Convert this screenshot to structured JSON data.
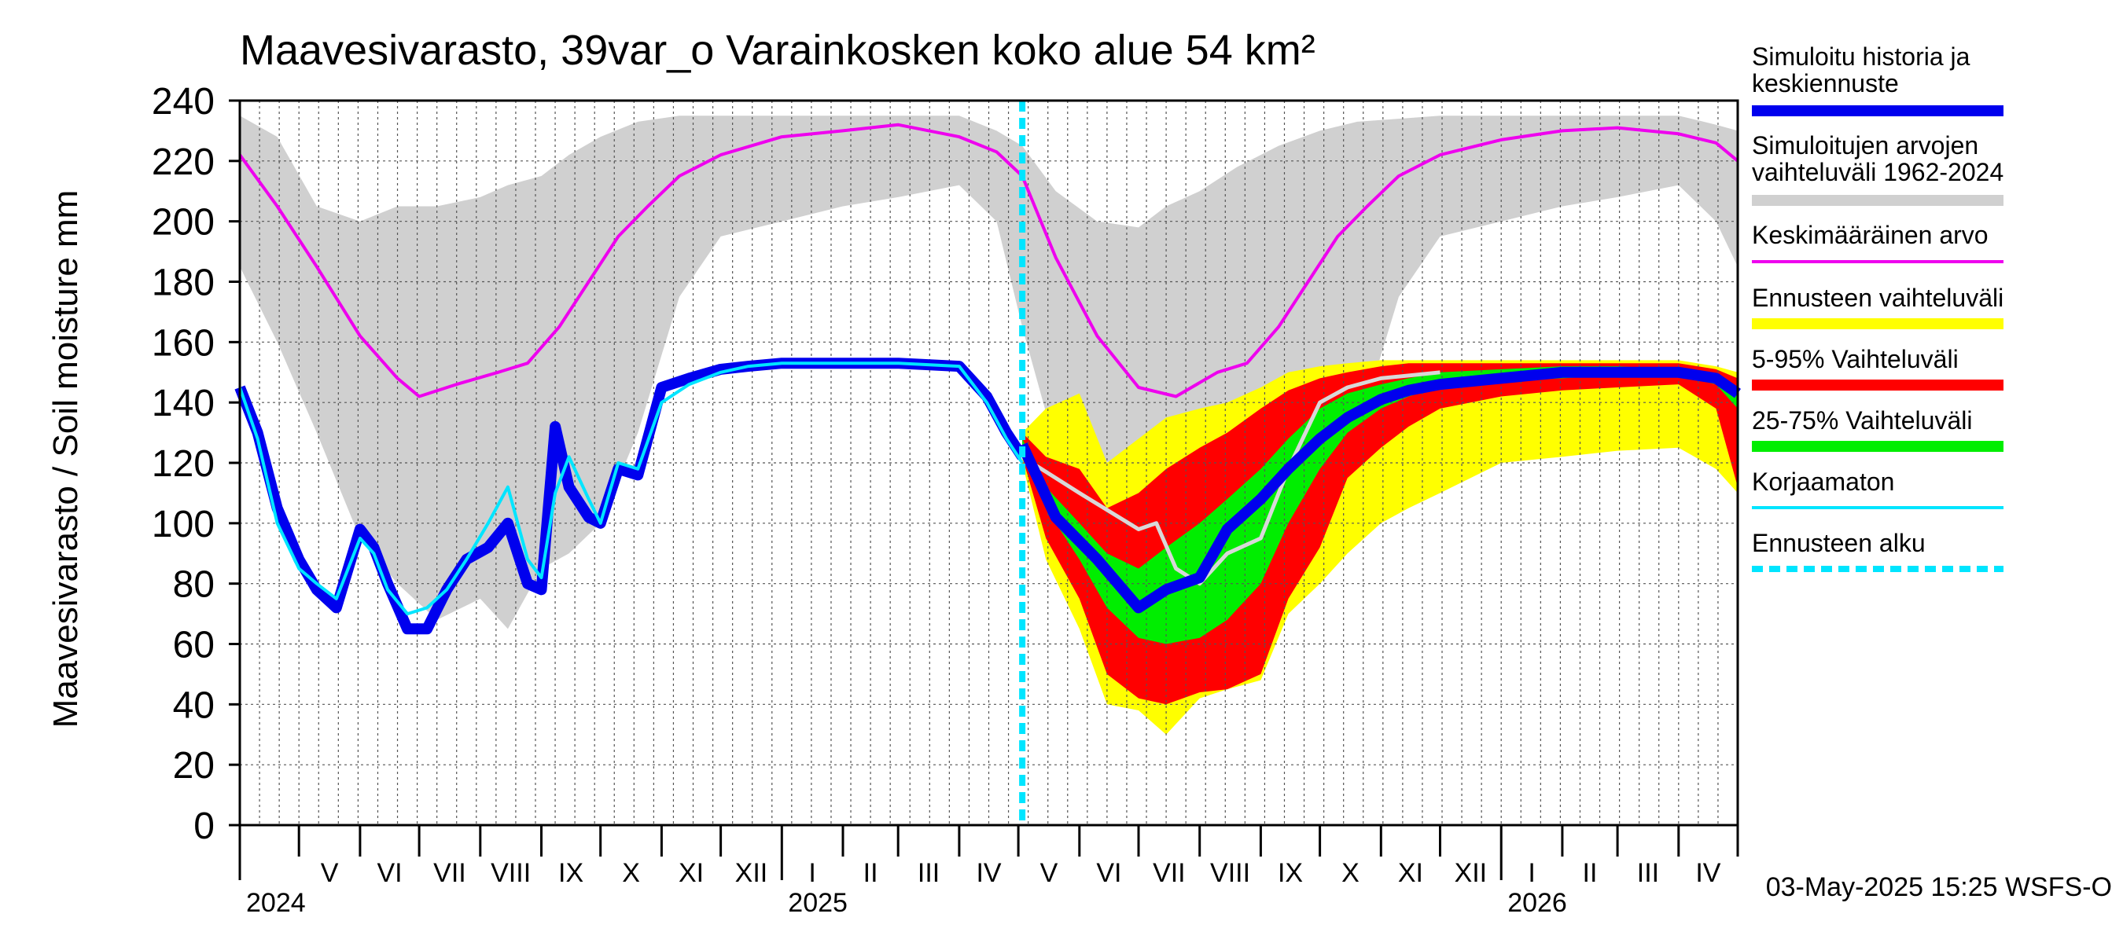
{
  "chart_data": {
    "type": "area",
    "title": "Maavesivarasto, 39var_o Varainkosken koko alue 54 km²",
    "ylabel": "Maavesivarasto / Soil moisture   mm",
    "ylim": [
      0,
      240
    ],
    "xlim": [
      "2024-04-01",
      "2026-05-01"
    ],
    "grid": true,
    "y_ticks": [
      0,
      20,
      40,
      60,
      80,
      100,
      120,
      140,
      160,
      180,
      200,
      220,
      240
    ],
    "month_labels": [
      {
        "label": "V",
        "date": "2024-05-01"
      },
      {
        "label": "VI",
        "date": "2024-06-01"
      },
      {
        "label": "VII",
        "date": "2024-07-01"
      },
      {
        "label": "VIII",
        "date": "2024-08-01"
      },
      {
        "label": "IX",
        "date": "2024-09-01"
      },
      {
        "label": "X",
        "date": "2024-10-01"
      },
      {
        "label": "XI",
        "date": "2024-11-01"
      },
      {
        "label": "XII",
        "date": "2024-12-01"
      },
      {
        "label": "I",
        "date": "2025-01-01"
      },
      {
        "label": "II",
        "date": "2025-02-01"
      },
      {
        "label": "III",
        "date": "2025-03-01"
      },
      {
        "label": "IV",
        "date": "2025-04-01"
      },
      {
        "label": "V",
        "date": "2025-05-01"
      },
      {
        "label": "VI",
        "date": "2025-06-01"
      },
      {
        "label": "VII",
        "date": "2025-07-01"
      },
      {
        "label": "VIII",
        "date": "2025-08-01"
      },
      {
        "label": "IX",
        "date": "2025-09-01"
      },
      {
        "label": "X",
        "date": "2025-10-01"
      },
      {
        "label": "XI",
        "date": "2025-11-01"
      },
      {
        "label": "XII",
        "date": "2025-12-01"
      },
      {
        "label": "I",
        "date": "2026-01-01"
      },
      {
        "label": "II",
        "date": "2026-02-01"
      },
      {
        "label": "III",
        "date": "2026-03-01"
      },
      {
        "label": "IV",
        "date": "2026-04-01"
      }
    ],
    "year_labels": [
      {
        "label": "2024",
        "date": "2024-04-01"
      },
      {
        "label": "2025",
        "date": "2025-01-01"
      },
      {
        "label": "2026",
        "date": "2026-01-01"
      }
    ],
    "forecast_start": "2025-05-03",
    "timestamp": "03-May-2025 15:25 WSFS-O",
    "legend": {
      "placement": "right",
      "items": [
        {
          "label": "Simuloitu historia ja keskiennuste",
          "color": "#0000ee",
          "style": "thick-line"
        },
        {
          "label": "Simuloitujen arvojen vaihteluväli 1962-2024",
          "color": "#d0d0d0",
          "style": "thick-line"
        },
        {
          "label": "Keskimääräinen arvo",
          "color": "#ee00ee",
          "style": "line"
        },
        {
          "label": "Ennusteen vaihteluväli",
          "color": "#ffff00",
          "style": "thick-line"
        },
        {
          "label": "5-95% Vaihteluväli",
          "color": "#ff0000",
          "style": "thick-line"
        },
        {
          "label": "25-75% Vaihteluväli",
          "color": "#00ee00",
          "style": "thick-line"
        },
        {
          "label": "Korjaamaton",
          "color": "#00e5ff",
          "style": "line"
        },
        {
          "label": "Ennusteen alku",
          "color": "#00e5ff",
          "style": "dashed"
        }
      ]
    },
    "series": [
      {
        "key": "hist_range",
        "type": "band",
        "color": "#d0d0d0",
        "x": [
          "2024-04-01",
          "2024-04-20",
          "2024-05-10",
          "2024-06-01",
          "2024-06-20",
          "2024-07-10",
          "2024-08-01",
          "2024-08-15",
          "2024-09-01",
          "2024-09-15",
          "2024-10-01",
          "2024-10-20",
          "2024-11-10",
          "2024-12-01",
          "2025-01-01",
          "2025-02-01",
          "2025-03-01",
          "2025-04-01",
          "2025-04-20",
          "2025-05-03",
          "2025-05-20",
          "2025-06-10",
          "2025-07-01",
          "2025-07-15",
          "2025-08-01",
          "2025-08-20",
          "2025-09-10",
          "2025-10-01",
          "2025-10-20",
          "2025-11-10",
          "2025-12-01",
          "2026-01-01",
          "2026-02-01",
          "2026-03-01",
          "2026-04-01",
          "2026-04-20",
          "2026-05-01"
        ],
        "upper": [
          235,
          228,
          205,
          200,
          205,
          205,
          208,
          212,
          215,
          222,
          228,
          233,
          235,
          235,
          235,
          235,
          235,
          235,
          230,
          225,
          210,
          200,
          198,
          205,
          210,
          218,
          225,
          230,
          233,
          234,
          235,
          235,
          235,
          235,
          235,
          232,
          230
        ],
        "lower": [
          185,
          160,
          130,
          95,
          80,
          68,
          75,
          65,
          85,
          90,
          100,
          130,
          175,
          195,
          200,
          205,
          208,
          212,
          200,
          165,
          125,
          110,
          105,
          95,
          90,
          95,
          100,
          105,
          130,
          175,
          195,
          200,
          205,
          208,
          212,
          200,
          185
        ]
      },
      {
        "key": "mean",
        "type": "line",
        "color": "#ee00ee",
        "x": [
          "2024-04-01",
          "2024-04-20",
          "2024-05-10",
          "2024-06-01",
          "2024-06-20",
          "2024-07-01",
          "2024-07-20",
          "2024-08-10",
          "2024-08-25",
          "2024-09-10",
          "2024-09-25",
          "2024-10-10",
          "2024-10-25",
          "2024-11-10",
          "2024-12-01",
          "2025-01-01",
          "2025-02-01",
          "2025-03-01",
          "2025-04-01",
          "2025-04-20",
          "2025-05-03",
          "2025-05-20",
          "2025-06-10",
          "2025-07-01",
          "2025-07-20",
          "2025-08-10",
          "2025-08-25",
          "2025-09-10",
          "2025-09-25",
          "2025-10-10",
          "2025-10-25",
          "2025-11-10",
          "2025-12-01",
          "2026-01-01",
          "2026-02-01",
          "2026-03-01",
          "2026-04-01",
          "2026-04-20",
          "2026-05-01"
        ],
        "values": [
          222,
          205,
          185,
          162,
          148,
          142,
          146,
          150,
          153,
          165,
          180,
          195,
          205,
          215,
          222,
          228,
          230,
          232,
          228,
          223,
          215,
          188,
          162,
          145,
          142,
          150,
          153,
          165,
          180,
          195,
          205,
          215,
          222,
          227,
          230,
          231,
          229,
          226,
          220
        ]
      },
      {
        "key": "fc_full",
        "type": "band",
        "color": "#ffff00",
        "x": [
          "2025-05-03",
          "2025-05-15",
          "2025-06-01",
          "2025-06-15",
          "2025-07-01",
          "2025-07-15",
          "2025-08-01",
          "2025-08-15",
          "2025-09-01",
          "2025-09-15",
          "2025-10-01",
          "2025-10-15",
          "2025-11-01",
          "2025-11-15",
          "2025-12-01",
          "2026-01-01",
          "2026-02-01",
          "2026-03-01",
          "2026-04-01",
          "2026-04-20",
          "2026-05-01"
        ],
        "upper": [
          130,
          138,
          143,
          120,
          128,
          135,
          138,
          140,
          145,
          150,
          152,
          153,
          154,
          154,
          154,
          154,
          154,
          154,
          154,
          152,
          150
        ],
        "lower": [
          120,
          88,
          65,
          40,
          38,
          30,
          42,
          45,
          48,
          70,
          80,
          90,
          100,
          105,
          110,
          120,
          122,
          124,
          125,
          118,
          110
        ]
      },
      {
        "key": "fc_5_95",
        "type": "band",
        "color": "#ff0000",
        "x": [
          "2025-05-03",
          "2025-05-15",
          "2025-06-01",
          "2025-06-15",
          "2025-07-01",
          "2025-07-15",
          "2025-08-01",
          "2025-08-15",
          "2025-09-01",
          "2025-09-15",
          "2025-10-01",
          "2025-10-15",
          "2025-11-01",
          "2025-11-15",
          "2025-12-01",
          "2026-01-01",
          "2026-02-01",
          "2026-03-01",
          "2026-04-01",
          "2026-04-20",
          "2026-05-01"
        ],
        "upper": [
          130,
          122,
          118,
          105,
          110,
          118,
          125,
          130,
          138,
          144,
          148,
          150,
          152,
          153,
          153,
          153,
          153,
          153,
          153,
          151,
          148
        ],
        "lower": [
          122,
          95,
          75,
          50,
          42,
          40,
          44,
          45,
          50,
          75,
          92,
          115,
          125,
          132,
          138,
          142,
          144,
          145,
          146,
          138,
          112
        ]
      },
      {
        "key": "fc_25_75",
        "type": "band",
        "color": "#00ee00",
        "x": [
          "2025-05-03",
          "2025-05-15",
          "2025-06-01",
          "2025-06-15",
          "2025-07-01",
          "2025-07-15",
          "2025-08-01",
          "2025-08-15",
          "2025-09-01",
          "2025-09-15",
          "2025-10-01",
          "2025-10-15",
          "2025-11-01",
          "2025-11-15",
          "2025-12-01",
          "2026-01-01",
          "2026-02-01",
          "2026-03-01",
          "2026-04-01",
          "2026-04-20",
          "2026-05-01"
        ],
        "upper": [
          128,
          112,
          100,
          90,
          85,
          92,
          100,
          108,
          118,
          128,
          138,
          143,
          146,
          148,
          150,
          151,
          152,
          152,
          151,
          149,
          145
        ],
        "lower": [
          124,
          105,
          88,
          72,
          62,
          60,
          62,
          68,
          80,
          100,
          118,
          130,
          138,
          142,
          145,
          147,
          148,
          149,
          149,
          146,
          138
        ]
      },
      {
        "key": "korjaamaton_hist",
        "type": "line",
        "color": "#00e5ff",
        "x": [
          "2024-04-01",
          "2024-04-10",
          "2024-04-20",
          "2024-05-01",
          "2024-05-10",
          "2024-05-20",
          "2024-06-01",
          "2024-06-08",
          "2024-06-15",
          "2024-06-25",
          "2024-07-05",
          "2024-07-15",
          "2024-07-25",
          "2024-08-05",
          "2024-08-15",
          "2024-08-25",
          "2024-09-01",
          "2024-09-08",
          "2024-09-15",
          "2024-09-25",
          "2024-10-01",
          "2024-10-10",
          "2024-10-20",
          "2024-11-01",
          "2024-11-15",
          "2024-12-01",
          "2024-12-15",
          "2025-01-01",
          "2025-02-01",
          "2025-03-01",
          "2025-04-01",
          "2025-04-15",
          "2025-04-25",
          "2025-05-03"
        ],
        "values": [
          145,
          128,
          100,
          85,
          80,
          75,
          95,
          90,
          78,
          70,
          72,
          78,
          88,
          100,
          112,
          88,
          82,
          110,
          122,
          108,
          100,
          120,
          118,
          140,
          146,
          150,
          152,
          153,
          153,
          153,
          152,
          140,
          128,
          120
        ]
      },
      {
        "key": "korjaamaton_fc",
        "type": "line",
        "color": "#d8d8d8",
        "x": [
          "2025-05-03",
          "2025-06-01",
          "2025-07-01",
          "2025-07-10",
          "2025-07-20",
          "2025-08-01",
          "2025-08-15",
          "2025-09-01",
          "2025-09-15",
          "2025-10-01",
          "2025-10-15",
          "2025-11-01",
          "2025-12-01"
        ],
        "values": [
          122,
          110,
          98,
          100,
          85,
          80,
          90,
          95,
          118,
          140,
          145,
          148,
          150
        ]
      },
      {
        "key": "sim_hist",
        "type": "line",
        "color": "#0000ee",
        "x": [
          "2024-04-01",
          "2024-04-10",
          "2024-04-20",
          "2024-05-01",
          "2024-05-10",
          "2024-05-20",
          "2024-06-01",
          "2024-06-08",
          "2024-06-15",
          "2024-06-25",
          "2024-07-05",
          "2024-07-15",
          "2024-07-25",
          "2024-08-05",
          "2024-08-15",
          "2024-08-25",
          "2024-09-01",
          "2024-09-08",
          "2024-09-15",
          "2024-09-25",
          "2024-10-01",
          "2024-10-10",
          "2024-10-20",
          "2024-11-01",
          "2024-11-15",
          "2024-12-01",
          "2024-12-15",
          "2025-01-01",
          "2025-02-01",
          "2025-03-01",
          "2025-04-01",
          "2025-04-15",
          "2025-04-25",
          "2025-05-03"
        ],
        "values": [
          145,
          130,
          105,
          88,
          78,
          72,
          98,
          92,
          80,
          65,
          65,
          78,
          88,
          92,
          100,
          80,
          78,
          132,
          112,
          102,
          100,
          118,
          116,
          145,
          148,
          151,
          152,
          153,
          153,
          153,
          152,
          142,
          130,
          122
        ]
      },
      {
        "key": "sim_fc",
        "type": "line",
        "color": "#0000ee",
        "x": [
          "2025-05-03",
          "2025-05-20",
          "2025-06-10",
          "2025-07-01",
          "2025-07-15",
          "2025-08-01",
          "2025-08-15",
          "2025-09-01",
          "2025-09-15",
          "2025-10-01",
          "2025-10-15",
          "2025-11-01",
          "2025-11-15",
          "2025-12-01",
          "2026-01-01",
          "2026-02-01",
          "2026-03-01",
          "2026-04-01",
          "2026-04-20",
          "2026-05-01"
        ],
        "values": [
          126,
          102,
          88,
          72,
          78,
          82,
          98,
          108,
          118,
          128,
          135,
          141,
          144,
          146,
          148,
          150,
          150,
          150,
          148,
          143
        ]
      }
    ]
  }
}
